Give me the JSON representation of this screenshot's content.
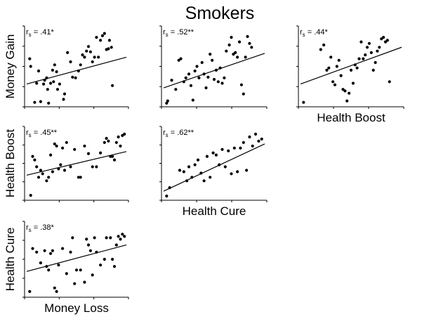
{
  "figure_title": "Smokers",
  "chart_data": [
    {
      "type": "scatter",
      "id": "p11",
      "ylabel": "Money Gain",
      "xlabel": "",
      "corr_prefix": "r",
      "corr_sub": "s",
      "corr_value": " = .41*",
      "fit": [
        [
          0,
          27
        ],
        [
          100,
          62
        ]
      ],
      "x": [
        3,
        4,
        8,
        10,
        12,
        14,
        17,
        18,
        20,
        21,
        22,
        24,
        26,
        27,
        28,
        30,
        31,
        33,
        37,
        38,
        41,
        44,
        46,
        49,
        52,
        54,
        56,
        58,
        60,
        62,
        64,
        66,
        68,
        70,
        72,
        74,
        76,
        78,
        80,
        82,
        83,
        85,
        86
      ],
      "y": [
        60,
        50,
        3,
        28,
        44,
        4,
        27,
        32,
        35,
        20,
        2,
        28,
        45,
        30,
        52,
        43,
        20,
        27,
        7,
        14,
        68,
        56,
        36,
        35,
        44,
        52,
        65,
        62,
        70,
        76,
        69,
        56,
        62,
        88,
        62,
        84,
        90,
        93,
        72,
        73,
        84,
        75,
        25
      ]
    },
    {
      "type": "scatter",
      "id": "p12",
      "ylabel": "",
      "xlabel": "",
      "corr_prefix": "r",
      "corr_sub": "s",
      "corr_value": " = .52**",
      "fit": [
        [
          0,
          22
        ],
        [
          100,
          67
        ]
      ],
      "x": [
        3,
        4,
        8,
        12,
        15,
        17,
        20,
        22,
        25,
        27,
        29,
        31,
        33,
        35,
        38,
        40,
        42,
        44,
        46,
        48,
        50,
        52,
        54,
        56,
        58,
        60,
        62,
        65,
        67,
        69,
        71,
        73,
        75,
        77,
        79,
        81,
        83,
        85,
        87
      ],
      "y": [
        2,
        5,
        32,
        20,
        58,
        60,
        30,
        35,
        40,
        25,
        6,
        44,
        50,
        35,
        55,
        40,
        22,
        36,
        66,
        58,
        33,
        45,
        30,
        48,
        28,
        35,
        70,
        78,
        88,
        66,
        68,
        62,
        82,
        26,
        14,
        62,
        89,
        80,
        75
      ],
      "extra": []
    },
    {
      "type": "scatter",
      "id": "p13",
      "ylabel": "",
      "xlabel": "Health Boost",
      "corr_prefix": "r",
      "corr_sub": "s",
      "corr_value": " = .44*",
      "fit": [
        [
          0,
          27
        ],
        [
          100,
          75
        ]
      ],
      "x": [
        3,
        20,
        23,
        26,
        28,
        30,
        32,
        34,
        36,
        38,
        40,
        42,
        44,
        46,
        48,
        50,
        52,
        54,
        56,
        58,
        60,
        62,
        64,
        66,
        68,
        70,
        72,
        74,
        76,
        78,
        80,
        82,
        84,
        86,
        88
      ],
      "y": [
        3,
        72,
        78,
        45,
        48,
        62,
        30,
        26,
        50,
        58,
        38,
        20,
        18,
        5,
        15,
        45,
        28,
        52,
        48,
        60,
        82,
        60,
        65,
        75,
        80,
        68,
        45,
        55,
        70,
        75,
        86,
        88,
        82,
        84,
        30
      ]
    },
    {
      "type": "scatter",
      "id": "p21",
      "ylabel": "Health Boost",
      "xlabel": "",
      "corr_prefix": "r",
      "corr_sub": "s",
      "corr_value": " = .45**",
      "fit": [
        [
          0,
          33
        ],
        [
          100,
          67
        ]
      ],
      "x": [
        4,
        6,
        8,
        10,
        12,
        14,
        16,
        20,
        22,
        24,
        26,
        28,
        30,
        32,
        34,
        36,
        38,
        40,
        44,
        48,
        52,
        54,
        58,
        62,
        66,
        70,
        74,
        78,
        80,
        82,
        84,
        86,
        88,
        90,
        92,
        94,
        96,
        98
      ],
      "y": [
        4,
        60,
        55,
        45,
        30,
        40,
        35,
        25,
        30,
        62,
        38,
        78,
        75,
        42,
        48,
        72,
        40,
        80,
        45,
        70,
        30,
        30,
        75,
        64,
        45,
        45,
        65,
        80,
        86,
        82,
        60,
        60,
        55,
        80,
        88,
        75,
        90,
        92
      ]
    },
    {
      "type": "scatter",
      "id": "p22",
      "ylabel": "",
      "xlabel": "Health Cure",
      "corr_prefix": "r",
      "corr_sub": "s",
      "corr_value": " = .62**",
      "fit": [
        [
          0,
          10
        ],
        [
          100,
          78
        ]
      ],
      "x": [
        3,
        6,
        16,
        20,
        23,
        25,
        28,
        31,
        34,
        37,
        40,
        43,
        46,
        49,
        52,
        55,
        58,
        61,
        64,
        67,
        70,
        73,
        76,
        79,
        82,
        85,
        88,
        91,
        94,
        97
      ],
      "y": [
        3,
        15,
        40,
        38,
        25,
        45,
        30,
        48,
        55,
        36,
        25,
        60,
        30,
        65,
        62,
        48,
        70,
        45,
        68,
        35,
        72,
        38,
        72,
        80,
        40,
        88,
        75,
        92,
        82,
        85
      ]
    },
    {
      "type": "scatter",
      "id": "p31",
      "ylabel": "Health Cure",
      "xlabel": "Money Loss",
      "corr_prefix": "r",
      "corr_sub": "s",
      "corr_value": " = .38*",
      "fit": [
        [
          0,
          33
        ],
        [
          100,
          70
        ]
      ],
      "x": [
        3,
        6,
        10,
        14,
        18,
        20,
        22,
        24,
        26,
        28,
        30,
        32,
        36,
        40,
        44,
        46,
        48,
        50,
        54,
        58,
        60,
        62,
        64,
        66,
        68,
        70,
        74,
        78,
        80,
        84,
        86,
        88,
        90,
        92,
        94,
        96,
        98
      ],
      "y": [
        5,
        65,
        60,
        45,
        62,
        40,
        35,
        58,
        62,
        10,
        5,
        42,
        65,
        30,
        60,
        80,
        16,
        35,
        35,
        18,
        78,
        70,
        62,
        28,
        80,
        60,
        42,
        50,
        80,
        80,
        50,
        40,
        70,
        82,
        78,
        85,
        82
      ]
    }
  ]
}
